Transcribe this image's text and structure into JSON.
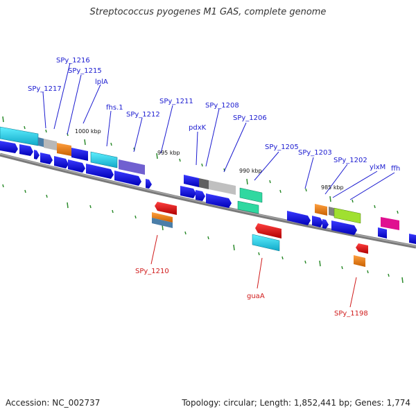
{
  "header": {
    "title": "Streptococcus pyogenes M1 GAS, complete genome"
  },
  "footer": {
    "accession": "Accession: NC_002737",
    "info": "Topology: circular; Length: 1,852,441 bp; Genes: 1,774"
  },
  "scale_labels": {
    "k1000": "1000 kbp",
    "k995": "995 kbp",
    "k990": "990 kbp",
    "k985": "985 kbp"
  },
  "labels_top": {
    "l1216": "SPy_1216",
    "l1215": "SPy_1215",
    "l1217": "SPy_1217",
    "lplA": "lplA",
    "fhs1": "fhs.1",
    "l1212": "SPy_1212",
    "l1211": "SPy_1211",
    "l1208": "SPy_1208",
    "pdxK": "pdxK",
    "l1206": "SPy_1206",
    "l1205": "SPy_1205",
    "l1203": "SPy_1203",
    "l1202": "SPy_1202",
    "ylxM": "ylxM",
    "ffh": "ffh"
  },
  "labels_bottom": {
    "l1210": "SPy_1210",
    "guaA": "guaA",
    "l1198": "SPy_1198"
  },
  "colors": {
    "blue_gene": "#1010e0",
    "cyan_gene": "#22d8e8",
    "gray_gene": "#b8b8b8",
    "orange_gene": "#f08010",
    "purple_gene": "#7060d0",
    "teal_gene": "#30d8a0",
    "lime_gene": "#a0e030",
    "magenta_gene": "#e01090",
    "red_gene": "#ee1010",
    "backbone": "#7a7a7a",
    "tick": "#2a8a2a"
  }
}
